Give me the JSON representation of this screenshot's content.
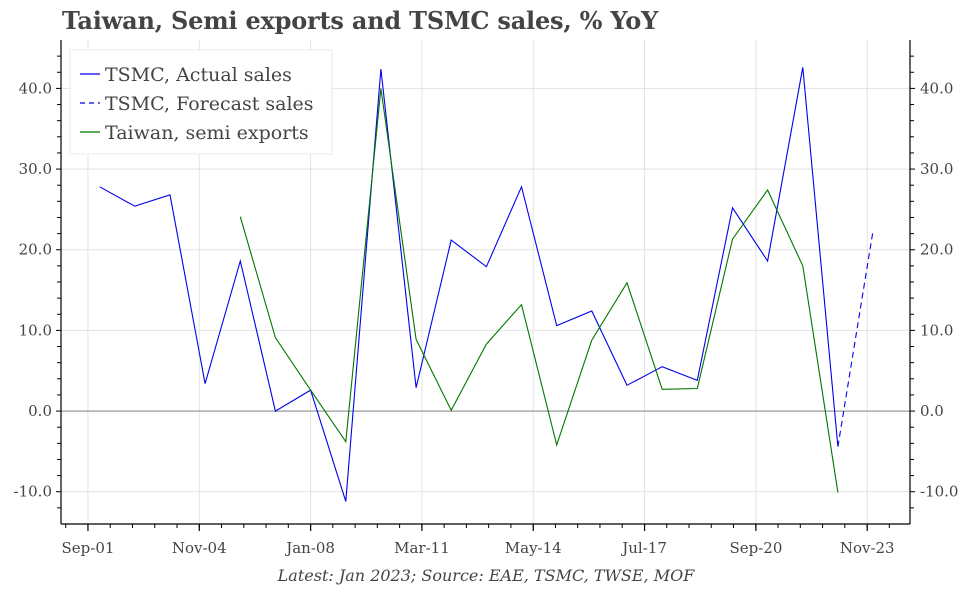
{
  "title": "Taiwan, Semi exports and TSMC sales, % YoY",
  "footer": "Latest: Jan 2023; Source: EAE, TSMC, TWSE, MOF",
  "colors": {
    "tsmc_actual": "#0000ee",
    "tsmc_forecast": "#0000ee",
    "taiwan_semi": "#007700",
    "grid": "#e3e3e3",
    "zero_line": "#aaaaaa",
    "axis": "#000000",
    "text": "#444444"
  },
  "chart_data": {
    "type": "line",
    "title": "Taiwan, Semi exports and TSMC sales, % YoY",
    "xlabel": "",
    "ylabel": "",
    "ylim": [
      -14,
      46
    ],
    "y_ticks": [
      -10,
      0,
      10,
      20,
      30,
      40
    ],
    "y_tick_labels": [
      "-10.0",
      "0.0",
      "10.0",
      "20.0",
      "30.0",
      "40.0"
    ],
    "x_tick_labels": [
      "Sep-01",
      "Nov-04",
      "Jan-08",
      "Mar-11",
      "May-14",
      "Jul-17",
      "Sep-20",
      "Nov-23"
    ],
    "x_tick_years": [
      2001.667,
      2004.833,
      2008.0,
      2011.167,
      2014.333,
      2017.5,
      2020.667,
      2023.833
    ],
    "xlim": [
      2000.9,
      2025.05
    ],
    "grid": true,
    "legend_position": "top-left",
    "secondary_y_axis": true,
    "series": [
      {
        "name": "TSMC, Actual sales",
        "style": "solid",
        "x": [
          2002,
          2003,
          2004,
          2005,
          2006,
          2007,
          2008,
          2009,
          2010,
          2011,
          2012,
          2013,
          2014,
          2015,
          2016,
          2017,
          2018,
          2019,
          2020,
          2021,
          2022,
          2023
        ],
        "values": [
          27.8,
          25.4,
          26.8,
          3.4,
          18.6,
          0.0,
          2.6,
          -11.2,
          42.4,
          2.9,
          21.2,
          17.9,
          27.8,
          10.6,
          12.4,
          3.2,
          5.5,
          3.8,
          25.2,
          18.6,
          42.6,
          -4.4
        ]
      },
      {
        "name": "TSMC, Forecast sales",
        "style": "dashed",
        "x": [
          2023,
          2024
        ],
        "values": [
          -4.4,
          22.4
        ]
      },
      {
        "name": "Taiwan, semi exports",
        "style": "solid",
        "x": [
          2006,
          2007,
          2008,
          2009,
          2010,
          2011,
          2012,
          2013,
          2014,
          2015,
          2016,
          2017,
          2018,
          2019,
          2020,
          2021,
          2022,
          2023
        ],
        "values": [
          24.1,
          9.1,
          2.6,
          -3.8,
          40.0,
          8.9,
          0.1,
          8.3,
          13.2,
          -4.2,
          8.8,
          15.9,
          2.7,
          2.8,
          21.3,
          27.4,
          18.0,
          -10.1
        ]
      }
    ]
  },
  "legend": {
    "items": [
      {
        "label": "TSMC, Actual sales",
        "style": "solid",
        "color": "#0000ee"
      },
      {
        "label": "TSMC, Forecast sales",
        "style": "dashed",
        "color": "#0000ee"
      },
      {
        "label": "Taiwan, semi exports",
        "style": "solid",
        "color": "#007700"
      }
    ]
  }
}
